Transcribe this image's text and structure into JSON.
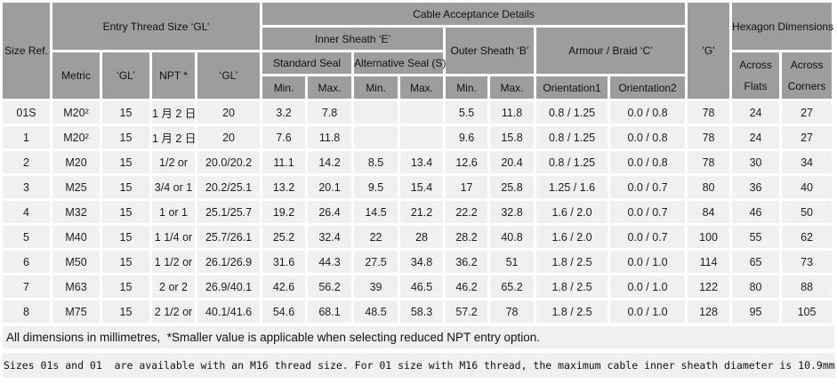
{
  "colors": {
    "header_bg": "#9d9d9d",
    "cell_bg": "#f0f0f0",
    "grid_gap": "#ffffff",
    "text": "#1c1c24"
  },
  "table": {
    "header": {
      "size_ref": "Size Ref.",
      "entry_thread": "Entry Thread Size ‘GL’",
      "cable_acceptance": "Cable Acceptance Details",
      "g": "'G'",
      "hexagon": "Hexagon Dimensions",
      "metric": "Metric",
      "gl1": "‘GL’",
      "npt": "NPT *",
      "gl2": "‘GL’",
      "inner_sheath": "Inner Sheath ‘E’",
      "outer_sheath": "Outer Sheath ‘B’",
      "armour": "Armour / Braid ‘C’",
      "standard_seal": "Standard Seal",
      "alternative_seal": "Alternative Seal (S)",
      "min1": "Min.",
      "max1": "Max.",
      "min2": "Min.",
      "max2": "Max.",
      "min3": "Min.",
      "max3": "Max.",
      "orientation1": "Orientation1",
      "orientation2": "Orientation2",
      "across_flats": "Across Flats",
      "across_corners": "Across Corners"
    },
    "rows": [
      [
        "01S",
        "M20²",
        "15",
        "1 月 2 日",
        "20",
        "3.2",
        "7.8",
        "",
        "",
        "5.5",
        "11.8",
        "0.8 / 1.25",
        "0.0 / 0.8",
        "78",
        "24",
        "27"
      ],
      [
        "1",
        "M20²",
        "15",
        "1 月 2 日",
        "20",
        "7.6",
        "11.8",
        "",
        "",
        "9.6",
        "15.8",
        "0.8 / 1.25",
        "0.0 / 0.8",
        "78",
        "24",
        "27"
      ],
      [
        "2",
        "M20",
        "15",
        "1/2 or",
        "20.0/20.2",
        "11.1",
        "14.2",
        "8.5",
        "13.4",
        "12.6",
        "20.4",
        "0.8 / 1.25",
        "0.0 / 0.8",
        "78",
        "30",
        "34"
      ],
      [
        "3",
        "M25",
        "15",
        "3/4 or 1",
        "20.2/25.1",
        "13.2",
        "20.1",
        "9.5",
        "15.4",
        "17",
        "25.8",
        "1.25 / 1.6",
        "0.0 / 0.7",
        "80",
        "36",
        "40"
      ],
      [
        "4",
        "M32",
        "15",
        "1 or 1",
        "25.1/25.7",
        "19.2",
        "26.4",
        "14.5",
        "21.2",
        "22.2",
        "32.8",
        "1.6 / 2.0",
        "0.0 / 0.7",
        "84",
        "46",
        "50"
      ],
      [
        "5",
        "M40",
        "15",
        "1 1/4 or",
        "25.7/26.1",
        "25.2",
        "32.4",
        "22",
        "28",
        "28.2",
        "40.8",
        "1.6 / 2.0",
        "0.0 / 0.7",
        "100",
        "55",
        "62"
      ],
      [
        "6",
        "M50",
        "15",
        "1 1/2 or",
        "26.1/26.9",
        "31.6",
        "44.3",
        "27.5",
        "34.8",
        "36.2",
        "51",
        "1.8 / 2.5",
        "0.0 / 1.0",
        "114",
        "65",
        "73"
      ],
      [
        "7",
        "M63",
        "15",
        "2 or 2",
        "26.9/40.1",
        "42.6",
        "56.2",
        "39",
        "46.5",
        "46.2",
        "65.2",
        "1.8 / 2.5",
        "0.0 / 1.0",
        "122",
        "80",
        "88"
      ],
      [
        "8",
        "M75",
        "15",
        "2 1/2 or",
        "40.1/41.6",
        "54.6",
        "68.1",
        "48.5",
        "58.3",
        "57.2",
        "78",
        "1.8 / 2.5",
        "0.0 / 1.0",
        "128",
        "95",
        "105"
      ]
    ]
  },
  "footnotes": {
    "line1": "All dimensions in millimetres,  *Smaller value is applicable when selecting reduced NPT entry option.",
    "line2": "Sizes 01s and 01  are available with an M16 thread size. For 01 size with M16 thread, the maximum cable inner sheath diameter is 10.9mm"
  }
}
